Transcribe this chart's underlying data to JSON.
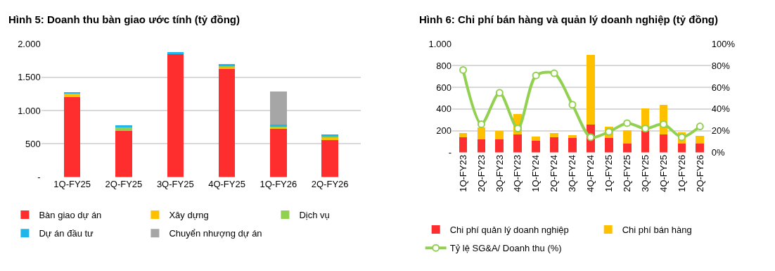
{
  "chart_data": [
    {
      "type": "bar",
      "title": "Hình 5: Doanh thu bàn giao ước tính (tỷ đồng)",
      "stacked": true,
      "grid": "y",
      "legend": "bottom",
      "categories": [
        "1Q-FY25",
        "2Q-FY25",
        "3Q-FY25",
        "4Q-FY25",
        "1Q-FY26",
        "2Q-FY26"
      ],
      "ylim": [
        0,
        2000
      ],
      "yticks": [
        {
          "value": 0,
          "label": "-"
        },
        500,
        {
          "value": 1000,
          "label": "1.000"
        },
        {
          "value": 1500,
          "label": "1.500"
        },
        {
          "value": 2000,
          "label": "2.000"
        }
      ],
      "series": [
        {
          "name": "Bàn giao dự án",
          "color": "#ff2e2e",
          "values": [
            1200,
            690,
            1860,
            1620,
            730,
            570
          ]
        },
        {
          "name": "Xây dựng",
          "color": "#ffc000",
          "values": [
            60,
            0,
            0,
            30,
            30,
            20
          ]
        },
        {
          "name": "Dịch vụ",
          "color": "#92d050",
          "values": [
            0,
            70,
            0,
            30,
            10,
            30
          ]
        },
        {
          "name": "Dự án đầu tư",
          "color": "#22b5e8",
          "values": [
            20,
            20,
            20,
            20,
            20,
            20
          ]
        },
        {
          "name": "Chuyển nhượng dự án",
          "color": "#a6a6a6",
          "values": [
            0,
            0,
            0,
            0,
            500,
            0
          ]
        }
      ]
    },
    {
      "type": "bar",
      "title": "Hình 6: Chi phí bán hàng và quản lý doanh nghiệp (tỷ đồng)",
      "stacked": true,
      "grid": "y",
      "legend": "bottom",
      "categories": [
        "1Q-FY23",
        "2Q-FY23",
        "3Q-FY23",
        "4Q-FY23",
        "1Q-FY24",
        "2Q-FY24",
        "3Q-FY24",
        "4Q-FY24",
        "1Q-FY25",
        "2Q-FY25",
        "3Q-FY25",
        "4Q-FY25",
        "1Q-FY26",
        "2Q-FY26"
      ],
      "ylim": [
        0,
        1000
      ],
      "yticks": [
        {
          "value": 0,
          "label": "-"
        },
        200,
        400,
        600,
        800,
        {
          "value": 1000,
          "label": "1.000"
        }
      ],
      "y2lim": [
        0,
        100
      ],
      "y2ticks": [
        {
          "value": 0,
          "label": "0%"
        },
        {
          "value": 20,
          "label": "20%"
        },
        {
          "value": 40,
          "label": "40%"
        },
        {
          "value": 60,
          "label": "60%"
        },
        {
          "value": 80,
          "label": "80%"
        },
        {
          "value": 100,
          "label": "100%"
        }
      ],
      "series": [
        {
          "name": "Chi phí quản lý doanh nghiệp",
          "color": "#ff2e2e",
          "values": [
            139,
            120,
            120,
            167,
            110,
            139,
            133,
            259,
            135,
            82,
            200,
            167,
            82,
            80
          ]
        },
        {
          "name": "Chi phí bán hàng",
          "color": "#ffc000",
          "values": [
            38,
            110,
            76,
            187,
            33,
            42,
            29,
            640,
            101,
            123,
            209,
            270,
            106,
            74
          ]
        },
        {
          "name": "Tỷ lệ SG&A/ Doanh thu (%)",
          "type": "line",
          "axis": "y2",
          "marker": "circle",
          "color": "#92d050",
          "values": [
            76,
            26,
            55,
            22,
            71,
            73,
            44,
            14,
            19,
            27,
            22,
            26,
            14,
            24
          ]
        }
      ]
    }
  ]
}
